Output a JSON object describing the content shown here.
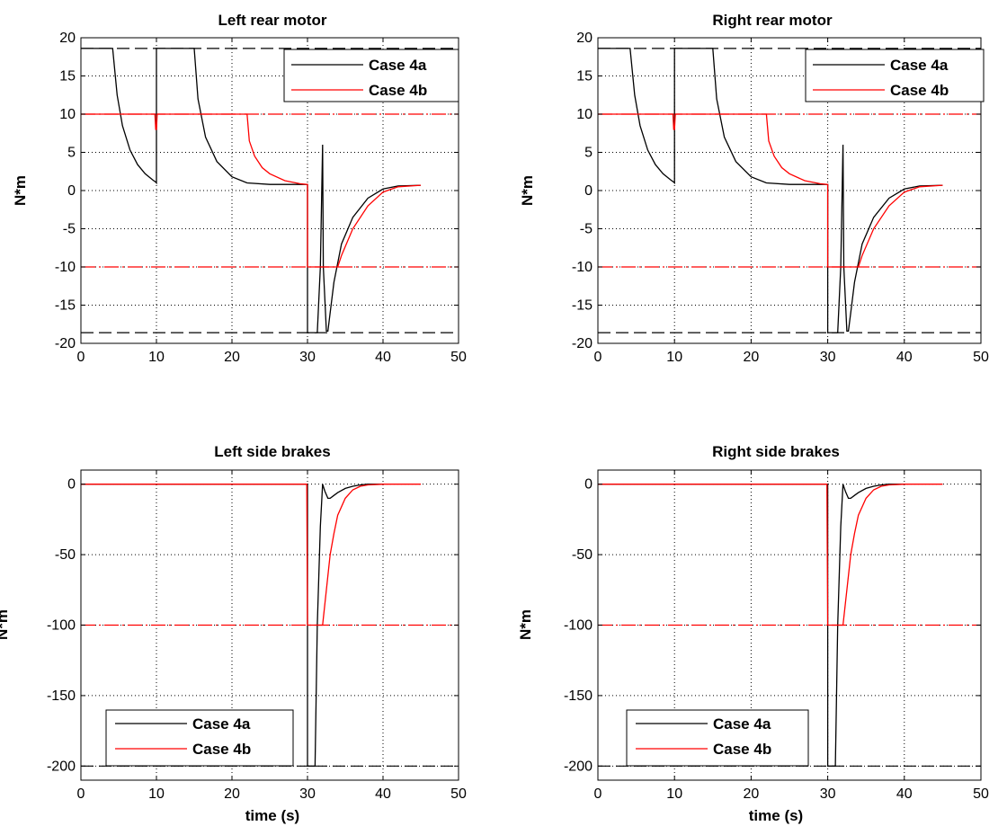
{
  "colors": {
    "case_4a": "#000000",
    "case_4b": "#ff0000",
    "grid": "#000000",
    "axes": "#000000"
  },
  "chart_data": [
    {
      "type": "line",
      "title": "Left rear motor",
      "xlabel": "",
      "ylabel": "N*m",
      "xlim": [
        0,
        50
      ],
      "ylim": [
        -20,
        20
      ],
      "xticks": [
        0,
        10,
        20,
        30,
        40,
        50
      ],
      "yticks": [
        20,
        15,
        10,
        5,
        0,
        -5,
        -10,
        -15,
        -20
      ],
      "grid": true,
      "legend": {
        "position": "top-right",
        "entries": [
          "Case 4a",
          "Case 4b"
        ]
      },
      "series": [
        {
          "name": "Case 4a",
          "color": "#000000",
          "x": [
            0,
            4.2,
            4.8,
            5.5,
            6.5,
            7.5,
            8.5,
            9.5,
            9.9,
            10.0,
            10.0,
            15.0,
            15.5,
            16.5,
            18,
            20,
            22,
            25,
            28,
            29.9,
            30.0,
            30.0,
            31.0,
            31.3,
            31.7,
            32.0,
            32.1,
            32.5,
            32.7,
            33.0,
            33.5,
            34.5,
            36,
            38,
            40,
            42,
            45
          ],
          "y": [
            18.6,
            18.6,
            12.5,
            8.5,
            5.3,
            3.4,
            2.2,
            1.4,
            1.1,
            1.0,
            18.6,
            18.6,
            12,
            7,
            3.8,
            1.8,
            1.0,
            0.8,
            0.8,
            0.8,
            0.8,
            -18.6,
            -18.6,
            -18.6,
            -10,
            6,
            -10,
            -18.4,
            -18.4,
            -16,
            -12,
            -7,
            -3.5,
            -1.0,
            0.2,
            0.6,
            0.7
          ]
        },
        {
          "name": "Case 4b",
          "color": "#ff0000",
          "x": [
            0,
            9.8,
            9.9,
            10.0,
            10.1,
            22.0,
            22.3,
            23,
            24,
            25,
            27,
            29,
            29.9,
            30.0,
            30.0,
            33.0,
            33.5,
            34.0,
            34.5,
            36,
            38,
            40,
            42,
            45
          ],
          "y": [
            10,
            10,
            8,
            8,
            10,
            10,
            6.5,
            4.5,
            3.0,
            2.2,
            1.3,
            0.9,
            0.8,
            0.8,
            -10,
            -10,
            -10,
            -10,
            -8.5,
            -5,
            -2,
            -0.2,
            0.5,
            0.7
          ]
        }
      ],
      "reference_lines": [
        {
          "y": 18.6,
          "color": "#000000",
          "style": "dashed"
        },
        {
          "y": -18.6,
          "color": "#000000",
          "style": "dashed"
        },
        {
          "y": 10,
          "color": "#ff0000",
          "style": "dashdot"
        },
        {
          "y": -10,
          "color": "#ff0000",
          "style": "dashdot"
        }
      ]
    },
    {
      "type": "line",
      "title": "Right rear motor",
      "xlabel": "",
      "ylabel": "N*m",
      "xlim": [
        0,
        50
      ],
      "ylim": [
        -20,
        20
      ],
      "xticks": [
        0,
        10,
        20,
        30,
        40,
        50
      ],
      "yticks": [
        20,
        15,
        10,
        5,
        0,
        -5,
        -10,
        -15,
        -20
      ],
      "grid": true,
      "legend": {
        "position": "top-right",
        "entries": [
          "Case 4a",
          "Case 4b"
        ]
      },
      "series": [
        {
          "name": "Case 4a",
          "color": "#000000",
          "x": [
            0,
            4.2,
            4.8,
            5.5,
            6.5,
            7.5,
            8.5,
            9.5,
            9.9,
            10.0,
            10.0,
            15.0,
            15.5,
            16.5,
            18,
            20,
            22,
            25,
            28,
            29.9,
            30.0,
            30.0,
            31.0,
            31.3,
            31.7,
            32.0,
            32.1,
            32.5,
            32.7,
            33.0,
            33.5,
            34.5,
            36,
            38,
            40,
            42,
            45
          ],
          "y": [
            18.6,
            18.6,
            12.5,
            8.5,
            5.3,
            3.4,
            2.2,
            1.4,
            1.1,
            1.0,
            18.6,
            18.6,
            12,
            7,
            3.8,
            1.8,
            1.0,
            0.8,
            0.8,
            0.8,
            0.8,
            -18.6,
            -18.6,
            -18.6,
            -10,
            6,
            -10,
            -18.4,
            -18.4,
            -16,
            -12,
            -7,
            -3.5,
            -1.0,
            0.2,
            0.6,
            0.7
          ]
        },
        {
          "name": "Case 4b",
          "color": "#ff0000",
          "x": [
            0,
            9.8,
            9.9,
            10.0,
            10.1,
            22.0,
            22.3,
            23,
            24,
            25,
            27,
            29,
            29.9,
            30.0,
            30.0,
            33.0,
            33.5,
            34.0,
            34.5,
            36,
            38,
            40,
            42,
            45
          ],
          "y": [
            10,
            10,
            8,
            8,
            10,
            10,
            6.5,
            4.5,
            3.0,
            2.2,
            1.3,
            0.9,
            0.8,
            0.8,
            -10,
            -10,
            -10,
            -10,
            -8.5,
            -5,
            -2,
            -0.2,
            0.5,
            0.7
          ]
        }
      ],
      "reference_lines": [
        {
          "y": 18.6,
          "color": "#000000",
          "style": "dashed"
        },
        {
          "y": -18.6,
          "color": "#000000",
          "style": "dashed"
        },
        {
          "y": 10,
          "color": "#ff0000",
          "style": "dashdot"
        },
        {
          "y": -10,
          "color": "#ff0000",
          "style": "dashdot"
        }
      ]
    },
    {
      "type": "line",
      "title": "Left side brakes",
      "xlabel": "time (s)",
      "ylabel": "N*m",
      "xlim": [
        0,
        50
      ],
      "ylim": [
        -210,
        10
      ],
      "xticks": [
        0,
        10,
        20,
        30,
        40,
        50
      ],
      "yticks": [
        0,
        -50,
        -100,
        -150,
        -200
      ],
      "grid": true,
      "legend": {
        "position": "bottom-left",
        "entries": [
          "Case 4a",
          "Case 4b"
        ]
      },
      "series": [
        {
          "name": "Case 4a",
          "color": "#000000",
          "x": [
            0,
            30.0,
            30.0,
            31.0,
            31.3,
            31.7,
            32.0,
            32.3,
            32.7,
            33.0,
            33.5,
            34,
            35,
            36,
            37,
            38,
            40
          ],
          "y": [
            0,
            0,
            -200,
            -200,
            -100,
            -30,
            0,
            -5,
            -10,
            -10,
            -8,
            -6,
            -3,
            -1.5,
            -0.5,
            0,
            0
          ]
        },
        {
          "name": "Case 4b",
          "color": "#ff0000",
          "x": [
            0,
            29.9,
            30.0,
            31.0,
            32.0,
            32.5,
            33.0,
            33.5,
            34,
            35,
            36,
            37,
            38,
            40,
            45
          ],
          "y": [
            0,
            0,
            -100,
            -100,
            -100,
            -75,
            -50,
            -35,
            -22,
            -10,
            -4,
            -1.5,
            -0.5,
            0,
            0
          ]
        }
      ],
      "reference_lines": [
        {
          "y": -200,
          "color": "#000000",
          "style": "dashed"
        },
        {
          "y": -100,
          "color": "#ff0000",
          "style": "dashdot"
        }
      ]
    },
    {
      "type": "line",
      "title": "Right side brakes",
      "xlabel": "time (s)",
      "ylabel": "N*m",
      "xlim": [
        0,
        50
      ],
      "ylim": [
        -210,
        10
      ],
      "xticks": [
        0,
        10,
        20,
        30,
        40,
        50
      ],
      "yticks": [
        0,
        -50,
        -100,
        -150,
        -200
      ],
      "grid": true,
      "legend": {
        "position": "bottom-left",
        "entries": [
          "Case 4a",
          "Case 4b"
        ]
      },
      "series": [
        {
          "name": "Case 4a",
          "color": "#000000",
          "x": [
            0,
            30.0,
            30.0,
            31.0,
            31.3,
            31.7,
            32.0,
            32.3,
            32.7,
            33.0,
            33.5,
            34,
            35,
            36,
            37,
            38,
            40
          ],
          "y": [
            0,
            0,
            -200,
            -200,
            -100,
            -30,
            0,
            -5,
            -10,
            -10,
            -8,
            -6,
            -3,
            -1.5,
            -0.5,
            0,
            0
          ]
        },
        {
          "name": "Case 4b",
          "color": "#ff0000",
          "x": [
            0,
            29.9,
            30.0,
            31.0,
            32.0,
            32.5,
            33.0,
            33.5,
            34,
            35,
            36,
            37,
            38,
            40,
            45
          ],
          "y": [
            0,
            0,
            -100,
            -100,
            -100,
            -75,
            -50,
            -35,
            -22,
            -10,
            -4,
            -1.5,
            -0.5,
            0,
            0
          ]
        }
      ],
      "reference_lines": [
        {
          "y": -200,
          "color": "#000000",
          "style": "dashed"
        },
        {
          "y": -100,
          "color": "#ff0000",
          "style": "dashdot"
        }
      ]
    }
  ]
}
